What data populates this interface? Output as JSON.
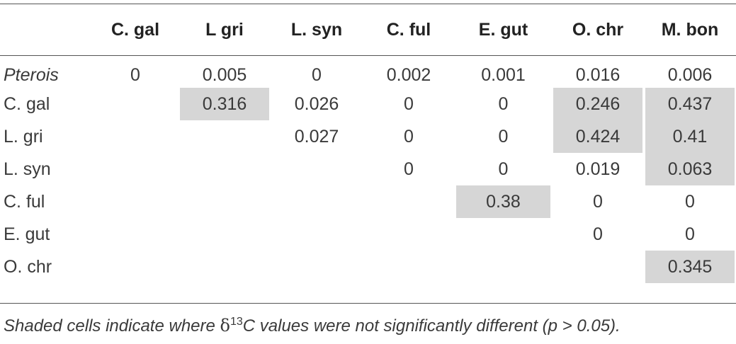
{
  "table": {
    "columns": [
      "",
      "C. gal",
      "L gri",
      "L. syn",
      "C. ful",
      "E. gut",
      "O. chr",
      "M. bon"
    ],
    "rows": [
      {
        "label": "Pterois",
        "italic": true,
        "cells": [
          "0",
          "0.005",
          "0",
          "0.002",
          "0.001",
          "0.016",
          "0.006"
        ],
        "shaded": [
          false,
          false,
          false,
          false,
          false,
          false,
          false
        ]
      },
      {
        "label": "C. gal",
        "italic": false,
        "cells": [
          "",
          "0.316",
          "0.026",
          "0",
          "0",
          "0.246",
          "0.437"
        ],
        "shaded": [
          false,
          true,
          false,
          false,
          false,
          true,
          true
        ]
      },
      {
        "label": "L. gri",
        "italic": false,
        "cells": [
          "",
          "",
          "0.027",
          "0",
          "0",
          "0.424",
          "0.41"
        ],
        "shaded": [
          false,
          false,
          false,
          false,
          false,
          true,
          true
        ]
      },
      {
        "label": "L. syn",
        "italic": false,
        "cells": [
          "",
          "",
          "",
          "0",
          "0",
          "0.019",
          "0.063"
        ],
        "shaded": [
          false,
          false,
          false,
          false,
          false,
          false,
          true
        ]
      },
      {
        "label": "C. ful",
        "italic": false,
        "cells": [
          "",
          "",
          "",
          "",
          "0.38",
          "0",
          "0"
        ],
        "shaded": [
          false,
          false,
          false,
          false,
          true,
          false,
          false
        ]
      },
      {
        "label": "E. gut",
        "italic": false,
        "cells": [
          "",
          "",
          "",
          "",
          "",
          "0",
          "0"
        ],
        "shaded": [
          false,
          false,
          false,
          false,
          false,
          false,
          false
        ]
      },
      {
        "label": "O. chr",
        "italic": false,
        "cells": [
          "",
          "",
          "",
          "",
          "",
          "",
          "0.345"
        ],
        "shaded": [
          false,
          false,
          false,
          false,
          false,
          false,
          true
        ]
      }
    ],
    "shade_color": "#d6d6d6"
  },
  "footnote": {
    "before": "Shaded cells indicate where ",
    "symbol": "δ",
    "superscript": "13",
    "after": "C values were not significantly different (p > 0.05)."
  }
}
